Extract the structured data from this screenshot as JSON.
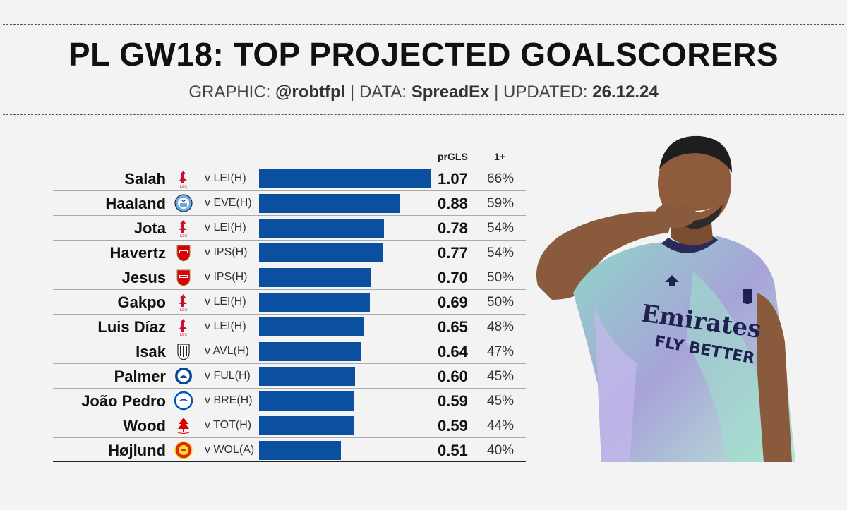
{
  "title": "PL GW18: TOP PROJECTED GOALSCORERS",
  "subtitle": {
    "graphic_label": "GRAPHIC:",
    "graphic_value": "@robtfpl",
    "data_label": "| DATA:",
    "data_value": "SpreadEx",
    "updated_label": "| UPDATED:",
    "updated_value": "26.12.24"
  },
  "headers": {
    "prgls": "prGLS",
    "one_plus": "1+"
  },
  "colors": {
    "bar": "#0b4fa0",
    "liverpool": "#c8102e",
    "arsenal": "#db0007",
    "man_city": "#6cabdd",
    "chelsea": "#034694",
    "brighton": "#0057b8",
    "newcastle": "#241f20",
    "forest": "#dd0000",
    "man_utd": "#da291c"
  },
  "chart_data": {
    "type": "bar",
    "orientation": "horizontal",
    "title": "PL GW18: TOP PROJECTED GOALSCORERS",
    "xlim": [
      0,
      1.07
    ],
    "categories": [
      "Salah",
      "Haaland",
      "Jota",
      "Havertz",
      "Jesus",
      "Gakpo",
      "Luis Díaz",
      "Isak",
      "Palmer",
      "João Pedro",
      "Wood",
      "Højlund"
    ],
    "series": [
      {
        "name": "prGLS",
        "values": [
          1.07,
          0.88,
          0.78,
          0.77,
          0.7,
          0.69,
          0.65,
          0.64,
          0.6,
          0.59,
          0.59,
          0.51
        ]
      }
    ],
    "rows": [
      {
        "player": "Salah",
        "club": "liverpool",
        "fixture": "v LEI(H)",
        "prgls": 1.07,
        "prgls_label": "1.07",
        "one_plus": "66%"
      },
      {
        "player": "Haaland",
        "club": "man_city",
        "fixture": "v EVE(H)",
        "prgls": 0.88,
        "prgls_label": "0.88",
        "one_plus": "59%"
      },
      {
        "player": "Jota",
        "club": "liverpool",
        "fixture": "v LEI(H)",
        "prgls": 0.78,
        "prgls_label": "0.78",
        "one_plus": "54%"
      },
      {
        "player": "Havertz",
        "club": "arsenal",
        "fixture": "v IPS(H)",
        "prgls": 0.77,
        "prgls_label": "0.77",
        "one_plus": "54%"
      },
      {
        "player": "Jesus",
        "club": "arsenal",
        "fixture": "v IPS(H)",
        "prgls": 0.7,
        "prgls_label": "0.70",
        "one_plus": "50%"
      },
      {
        "player": "Gakpo",
        "club": "liverpool",
        "fixture": "v LEI(H)",
        "prgls": 0.69,
        "prgls_label": "0.69",
        "one_plus": "50%"
      },
      {
        "player": "Luis Díaz",
        "club": "liverpool",
        "fixture": "v LEI(H)",
        "prgls": 0.65,
        "prgls_label": "0.65",
        "one_plus": "48%"
      },
      {
        "player": "Isak",
        "club": "newcastle",
        "fixture": "v AVL(H)",
        "prgls": 0.64,
        "prgls_label": "0.64",
        "one_plus": "47%"
      },
      {
        "player": "Palmer",
        "club": "chelsea",
        "fixture": "v FUL(H)",
        "prgls": 0.6,
        "prgls_label": "0.60",
        "one_plus": "45%"
      },
      {
        "player": "João Pedro",
        "club": "brighton",
        "fixture": "v BRE(H)",
        "prgls": 0.59,
        "prgls_label": "0.59",
        "one_plus": "45%"
      },
      {
        "player": "Wood",
        "club": "forest",
        "fixture": "v TOT(H)",
        "prgls": 0.59,
        "prgls_label": "0.59",
        "one_plus": "44%"
      },
      {
        "player": "Højlund",
        "club": "man_utd",
        "fixture": "v WOL(A)",
        "prgls": 0.51,
        "prgls_label": "0.51",
        "one_plus": "40%"
      }
    ]
  },
  "player_image": {
    "icon": "player-photo-jesus",
    "sponsor_line1": "Emirates",
    "sponsor_line2": "FLY BETTER"
  }
}
